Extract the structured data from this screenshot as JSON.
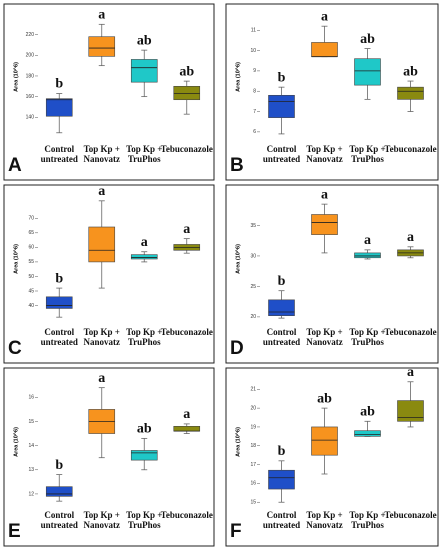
{
  "chart_data": [
    {
      "type": "box",
      "panel": "A",
      "y_label": "Area (10^6)",
      "categories": [
        [
          "Control",
          "untreated"
        ],
        [
          "Top Kp +",
          "Nanovatz"
        ],
        [
          "Top Kp +",
          "TruPhos"
        ],
        [
          "Tebuconazole"
        ]
      ],
      "colors": [
        "#1f4fc8",
        "#f7931e",
        "#1fc8c8",
        "#8a8a10"
      ],
      "group_labels": [
        "b",
        "a",
        "ab",
        "ab"
      ],
      "low": [
        125,
        190,
        160,
        143
      ],
      "q1": [
        141,
        199,
        174,
        157
      ],
      "median": [
        157,
        207,
        188,
        163
      ],
      "q3": [
        158,
        218,
        196,
        170
      ],
      "high": [
        163,
        230,
        205,
        175
      ],
      "ylim": [
        118,
        240
      ],
      "yticks": [
        140,
        160,
        180,
        200,
        220
      ]
    },
    {
      "type": "box",
      "panel": "B",
      "y_label": "Area (10^6)",
      "categories": [
        [
          "Control",
          "untreated"
        ],
        [
          "Top Kp +",
          "Nanovatz"
        ],
        [
          "Top Kp +",
          "TruPhos"
        ],
        [
          "Tebuconazole"
        ]
      ],
      "colors": [
        "#1f4fc8",
        "#f7931e",
        "#1fc8c8",
        "#8a8a10"
      ],
      "group_labels": [
        "b",
        "a",
        "ab",
        "ab"
      ],
      "low": [
        5.9,
        9.7,
        7.6,
        7.0
      ],
      "q1": [
        6.7,
        9.7,
        8.3,
        7.6
      ],
      "median": [
        7.5,
        9.7,
        9.0,
        8.0
      ],
      "q3": [
        7.8,
        10.4,
        9.6,
        8.2
      ],
      "high": [
        8.2,
        11.2,
        10.1,
        8.5
      ],
      "ylim": [
        5.6,
        11.8
      ],
      "yticks": [
        6,
        7,
        8,
        9,
        10,
        11
      ]
    },
    {
      "type": "box",
      "panel": "C",
      "y_label": "Area (10^6)",
      "categories": [
        [
          "Control",
          "untreated"
        ],
        [
          "Top Kp +",
          "Nanovatz"
        ],
        [
          "Top Kp +",
          "TruPhos"
        ],
        [
          "Tebuconazole"
        ]
      ],
      "colors": [
        "#1f4fc8",
        "#f7931e",
        "#1fc8c8",
        "#8a8a10"
      ],
      "group_labels": [
        "b",
        "a",
        "a",
        "a"
      ],
      "low": [
        36,
        46,
        55,
        58
      ],
      "q1": [
        39,
        55,
        56,
        59
      ],
      "median": [
        40,
        59,
        56.5,
        60
      ],
      "q3": [
        43,
        67,
        57.5,
        61
      ],
      "high": [
        46,
        76,
        58.5,
        63
      ],
      "ylim": [
        34,
        78
      ],
      "yticks": [
        40,
        45,
        50,
        55,
        60,
        65,
        70
      ]
    },
    {
      "type": "box",
      "panel": "D",
      "y_label": "Area (10^6)",
      "categories": [
        [
          "Control",
          "untreated"
        ],
        [
          "Top Kp +",
          "Nanovatz"
        ],
        [
          "Top Kp +",
          "TruPhos"
        ],
        [
          "Tebuconazole"
        ]
      ],
      "colors": [
        "#1f4fc8",
        "#f7931e",
        "#1fc8c8",
        "#8a8a10"
      ],
      "group_labels": [
        "b",
        "a",
        "a",
        "a"
      ],
      "low": [
        19.8,
        30.5,
        29.5,
        29.7
      ],
      "q1": [
        20.2,
        33.5,
        29.7,
        30
      ],
      "median": [
        20.8,
        35.5,
        30,
        30.5
      ],
      "q3": [
        22.8,
        36.8,
        30.5,
        31
      ],
      "high": [
        24.3,
        38.5,
        31,
        31.5
      ],
      "ylim": [
        19,
        40
      ],
      "yticks": [
        20,
        25,
        30,
        35
      ]
    },
    {
      "type": "box",
      "panel": "E",
      "y_label": "Area (10^6)",
      "categories": [
        [
          "Control",
          "untreated"
        ],
        [
          "Top Kp +",
          "Nanovatz"
        ],
        [
          "Top Kp +",
          "TruPhos"
        ],
        [
          "Tebuconazole"
        ]
      ],
      "colors": [
        "#1f4fc8",
        "#f7931e",
        "#1fc8c8",
        "#8a8a10"
      ],
      "group_labels": [
        "b",
        "a",
        "ab",
        "a"
      ],
      "low": [
        11.7,
        13.5,
        13.0,
        14.5
      ],
      "q1": [
        11.9,
        14.5,
        13.4,
        14.6
      ],
      "median": [
        12.0,
        15.0,
        13.7,
        14.6
      ],
      "q3": [
        12.3,
        15.5,
        13.8,
        14.8
      ],
      "high": [
        12.8,
        16.4,
        14.3,
        14.9
      ],
      "ylim": [
        11.5,
        16.8
      ],
      "yticks": [
        12,
        13,
        14,
        15,
        16
      ]
    },
    {
      "type": "box",
      "panel": "F",
      "y_label": "Area (10^6)",
      "categories": [
        [
          "Control",
          "untreated"
        ],
        [
          "Top Kp +",
          "Nanovatz"
        ],
        [
          "Top Kp +",
          "TruPhos"
        ],
        [
          "Tebuconazole"
        ]
      ],
      "colors": [
        "#1f4fc8",
        "#f7931e",
        "#1fc8c8",
        "#8a8a10"
      ],
      "group_labels": [
        "b",
        "ab",
        "ab",
        "a"
      ],
      "low": [
        15,
        16.5,
        18.5,
        19
      ],
      "q1": [
        15.7,
        17.5,
        18.5,
        19.3
      ],
      "median": [
        16.3,
        18.3,
        18.6,
        19.5
      ],
      "q3": [
        16.7,
        19,
        18.8,
        20.4
      ],
      "high": [
        17.2,
        20,
        19.3,
        21.4
      ],
      "ylim": [
        14.8,
        21.6
      ],
      "yticks": [
        15,
        16,
        17,
        18,
        19,
        20,
        21
      ]
    }
  ]
}
